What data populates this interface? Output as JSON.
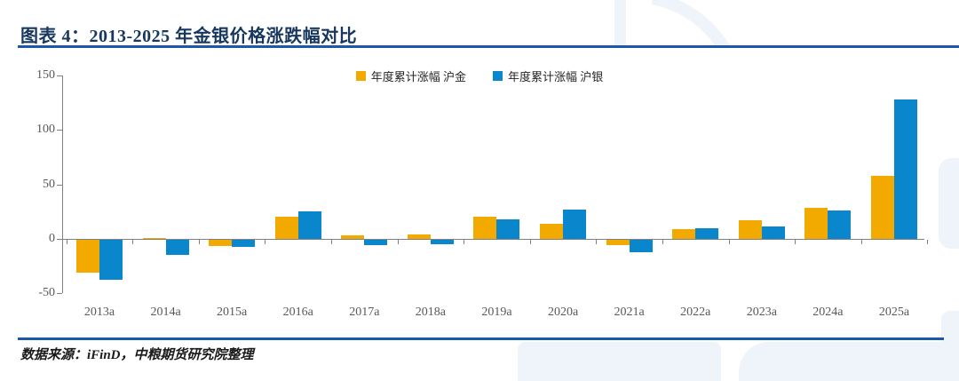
{
  "figure": {
    "title": "图表 4：2013-2025 年金银价格涨跌幅对比",
    "source_note": "数据来源：iFinD，中粮期货研究院整理"
  },
  "colors": {
    "gold": "#F2A900",
    "silver": "#0A86CC",
    "title_text": "#17375E",
    "divider_blue": "#1B58A8",
    "watermark_blue": "#EFF3FA",
    "axis_line": "#808080",
    "tick_label": "#595959",
    "legend_text": "#262626"
  },
  "chart_data": {
    "type": "bar",
    "title": "",
    "xlabel": "",
    "ylabel": "",
    "categories": [
      "2013a",
      "2014a",
      "2015a",
      "2016a",
      "2017a",
      "2018a",
      "2019a",
      "2020a",
      "2021a",
      "2022a",
      "2023a",
      "2024a",
      "2025a"
    ],
    "series": [
      {
        "key": "gold",
        "name": "年度累计涨幅 沪金",
        "color": "#F2A900",
        "values": [
          -30,
          1,
          -6,
          20,
          3,
          4,
          20,
          14,
          -5,
          9,
          17,
          28,
          58
        ]
      },
      {
        "key": "silver",
        "name": "年度累计涨幅 沪银",
        "color": "#0A86CC",
        "values": [
          -37,
          -14,
          -7,
          25,
          -5,
          -4,
          18,
          27,
          -12,
          10,
          11,
          26,
          128
        ]
      }
    ],
    "ylim": [
      -50,
      150
    ],
    "yticks": [
      150,
      100,
      50,
      0,
      -50
    ],
    "legend_position": "top-center",
    "grid": false
  }
}
